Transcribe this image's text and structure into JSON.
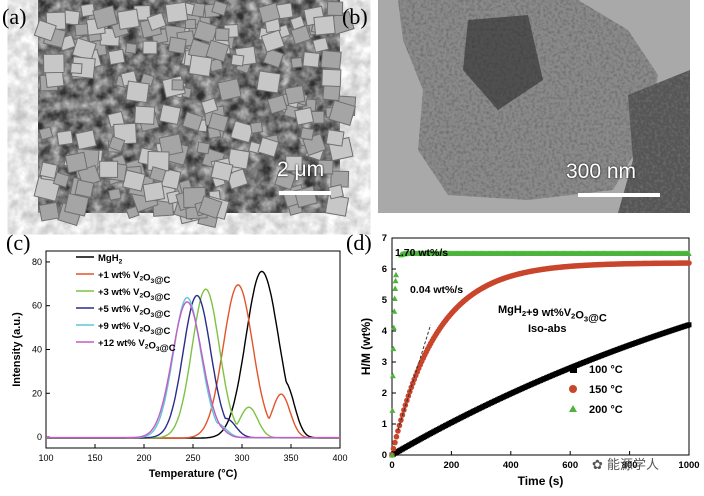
{
  "figure": {
    "panels": [
      {
        "label": "(a)",
        "scale_bar": "2 μm",
        "kind": "SEM"
      },
      {
        "label": "(b)",
        "scale_bar": "300 nm",
        "kind": "TEM"
      },
      {
        "label": "(c)"
      },
      {
        "label": "(d)"
      }
    ],
    "watermark": "能源学人"
  },
  "chart_data": [
    {
      "type": "line",
      "xlabel": "Temperature (°C)",
      "ylabel": "Intensity (a.u.)",
      "xlim": [
        100,
        400
      ],
      "ylim": [
        -5,
        85
      ],
      "xticks": [
        "100",
        "150",
        "200",
        "250",
        "300",
        "350",
        "400"
      ],
      "yticks": [
        "0",
        "20",
        "40",
        "60",
        "80"
      ],
      "grid": false,
      "legend_position": "top-left",
      "series": [
        {
          "name": "MgH2",
          "color": "#000000",
          "peak_x": 320,
          "peak_y": 76,
          "width": 16,
          "shoulder_x": 345,
          "shoulder_y": 22
        },
        {
          "name": "+1 wt% V2O3@C",
          "color": "#e0552a",
          "peak_x": 296,
          "peak_y": 70,
          "width": 15,
          "shoulder_x": 340,
          "shoulder_y": 20
        },
        {
          "name": "+3 wt% V2O3@C",
          "color": "#7dc243",
          "peak_x": 263,
          "peak_y": 68,
          "width": 14,
          "shoulder_x": 307,
          "shoulder_y": 14
        },
        {
          "name": "+5 wt% V2O3@C",
          "color": "#2b2b8c",
          "peak_x": 254,
          "peak_y": 65,
          "width": 14,
          "shoulder_x": 285,
          "shoulder_y": 8
        },
        {
          "name": "+9 wt% V2O3@C",
          "color": "#5cc8d6",
          "peak_x": 244,
          "peak_y": 64,
          "width": 14,
          "shoulder_x": 275,
          "shoulder_y": 6
        },
        {
          "name": "+12 wt% V2O3@C",
          "color": "#c45bc6",
          "peak_x": 244,
          "peak_y": 62,
          "width": 15,
          "shoulder_x": 272,
          "shoulder_y": 6
        }
      ]
    },
    {
      "type": "scatter",
      "xlabel": "Time (s)",
      "ylabel": "H/M (wt%)",
      "xlim": [
        0,
        1000
      ],
      "ylim": [
        0,
        7
      ],
      "xticks": [
        "0",
        "200",
        "400",
        "600",
        "800",
        "1000"
      ],
      "yticks": [
        "0",
        "1",
        "2",
        "3",
        "4",
        "5",
        "6",
        "7"
      ],
      "legend_position": "bottom-right",
      "annotations": [
        "1.70 wt%/s",
        "0.04 wt%/s",
        "MgH2+9 wt%V2O3@C",
        "Iso-abs"
      ],
      "series": [
        {
          "name": "100 °C",
          "color": "#000000",
          "marker": "square",
          "end_value": 4.2
        },
        {
          "name": "150 °C",
          "color": "#c9452b",
          "marker": "circle",
          "end_value": 6.2
        },
        {
          "name": "200 °C",
          "color": "#4db33d",
          "marker": "triangle",
          "end_value": 6.5
        }
      ]
    }
  ]
}
